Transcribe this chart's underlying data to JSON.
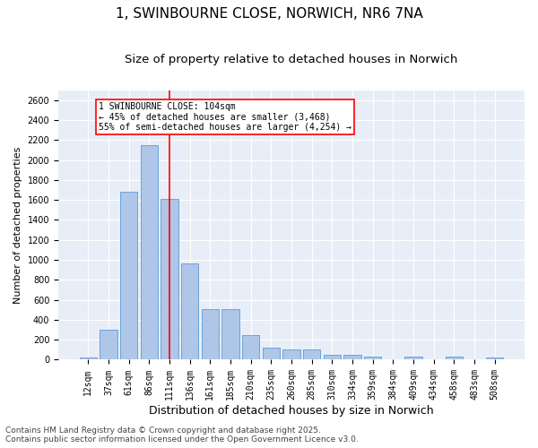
{
  "title": "1, SWINBOURNE CLOSE, NORWICH, NR6 7NA",
  "subtitle": "Size of property relative to detached houses in Norwich",
  "xlabel": "Distribution of detached houses by size in Norwich",
  "ylabel": "Number of detached properties",
  "categories": [
    "12sqm",
    "37sqm",
    "61sqm",
    "86sqm",
    "111sqm",
    "136sqm",
    "161sqm",
    "185sqm",
    "210sqm",
    "235sqm",
    "260sqm",
    "285sqm",
    "310sqm",
    "334sqm",
    "359sqm",
    "384sqm",
    "409sqm",
    "434sqm",
    "458sqm",
    "483sqm",
    "508sqm"
  ],
  "values": [
    25,
    300,
    1680,
    2150,
    1610,
    960,
    510,
    510,
    245,
    120,
    100,
    100,
    48,
    48,
    35,
    0,
    35,
    0,
    35,
    0,
    25
  ],
  "bar_color": "#aec6e8",
  "bar_edge_color": "#5b9bd5",
  "bg_color": "#e8eef7",
  "grid_color": "#ffffff",
  "vline_x_index": 4,
  "vline_color": "red",
  "annotation_text": "1 SWINBOURNE CLOSE: 104sqm\n← 45% of detached houses are smaller (3,468)\n55% of semi-detached houses are larger (4,254) →",
  "footer_line1": "Contains HM Land Registry data © Crown copyright and database right 2025.",
  "footer_line2": "Contains public sector information licensed under the Open Government Licence v3.0.",
  "ylim": [
    0,
    2700
  ],
  "title_fontsize": 11,
  "subtitle_fontsize": 9.5,
  "xlabel_fontsize": 9,
  "ylabel_fontsize": 8,
  "tick_fontsize": 7,
  "footer_fontsize": 6.5,
  "annot_fontsize": 7
}
